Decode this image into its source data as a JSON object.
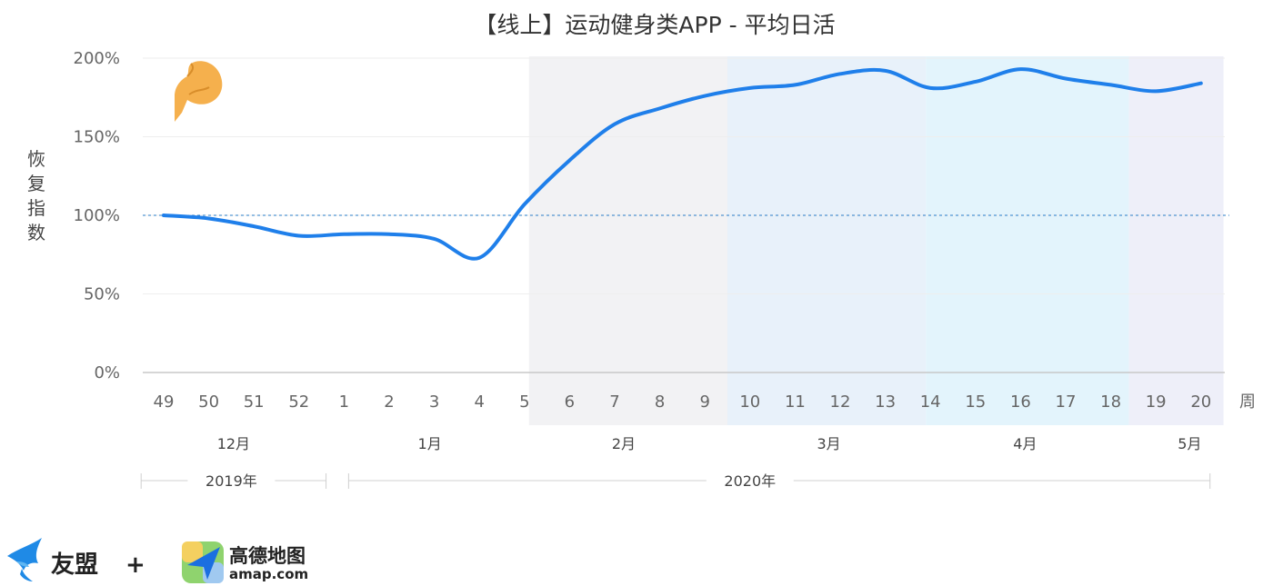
{
  "chart_data": {
    "type": "line",
    "title": "【线上】运动健身类APP - 平均日活",
    "ylabel": "恢复指数",
    "xunit": "周",
    "ylim": [
      0,
      200
    ],
    "y_ticks": [
      "0%",
      "50%",
      "100%",
      "150%",
      "200%"
    ],
    "y_tick_values": [
      0,
      50,
      100,
      150,
      200
    ],
    "reference_line": 100,
    "categories": [
      "49",
      "50",
      "51",
      "52",
      "1",
      "2",
      "3",
      "4",
      "5",
      "6",
      "7",
      "8",
      "9",
      "10",
      "11",
      "12",
      "13",
      "14",
      "15",
      "16",
      "17",
      "18",
      "19",
      "20"
    ],
    "series": [
      {
        "values": [
          100,
          98,
          93,
          87,
          88,
          88,
          85,
          73,
          107,
          135,
          158,
          168,
          176,
          181,
          183,
          190,
          192,
          181,
          185,
          193,
          187,
          183,
          179,
          184
        ]
      }
    ],
    "months": [
      "12月",
      "1月",
      "2月",
      "3月",
      "4月",
      "5月"
    ],
    "years": [
      "2019年",
      "2020年"
    ],
    "line_color": "#1f7fea",
    "shade_colors": [
      "#f2f2f4",
      "#e8f1fa",
      "#e3f4fc",
      "#eeeff9"
    ]
  },
  "logos": {
    "umeng": "友盟",
    "plus": "+",
    "amap_cn": "高德地图",
    "amap_en": "amap.com"
  }
}
